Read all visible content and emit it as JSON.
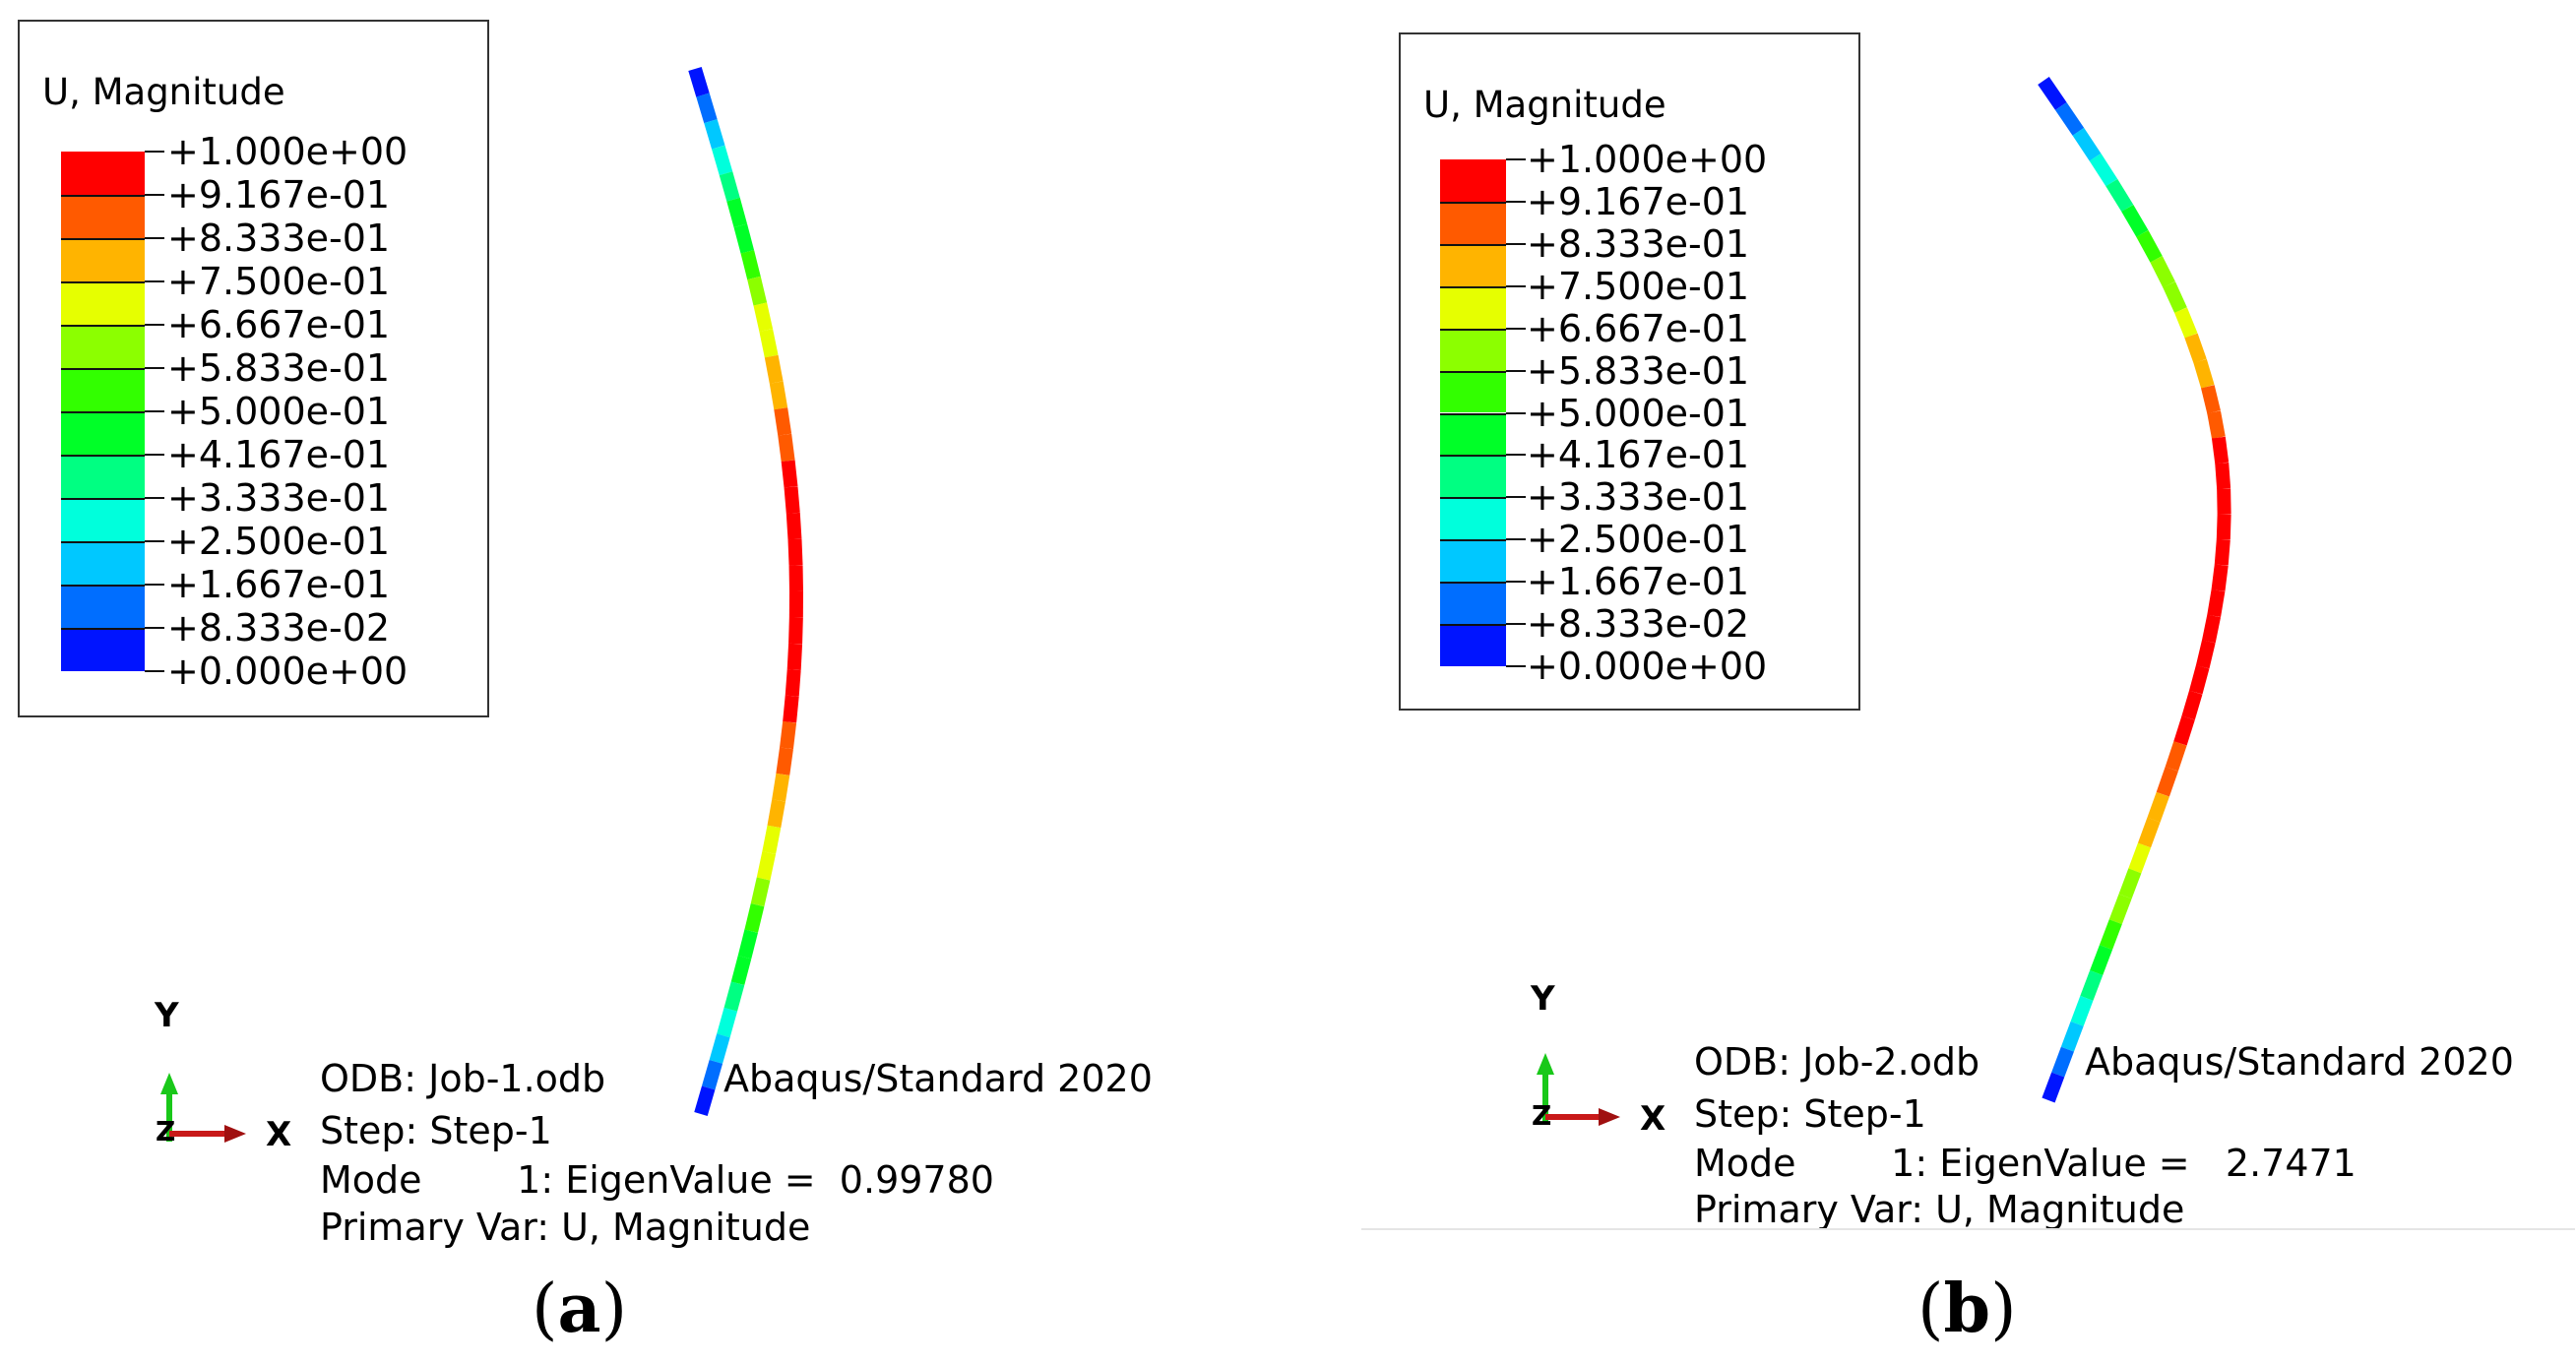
{
  "legend_colors": [
    "#ff0000",
    "#ff5a00",
    "#ffb400",
    "#e6ff00",
    "#8cff00",
    "#32ff00",
    "#00ff28",
    "#00ff82",
    "#00ffdc",
    "#00c8ff",
    "#006eff",
    "#0014ff"
  ],
  "panels": [
    {
      "id": "a",
      "legend": {
        "title": "U, Magnitude",
        "ticks": [
          "+1.000e+00",
          "+9.167e-01",
          "+8.333e-01",
          "+7.500e-01",
          "+6.667e-01",
          "+5.833e-01",
          "+5.000e-01",
          "+4.167e-01",
          "+3.333e-01",
          "+2.500e-01",
          "+1.667e-01",
          "+8.333e-02",
          "+0.000e+00"
        ]
      },
      "triad": {
        "y": "Y",
        "x": "X",
        "z": "Z"
      },
      "info": {
        "odb": "ODB: Job-1.odb",
        "solver": "Abaqus/Standard 2020",
        "step": "Step: Step-1",
        "mode": "Mode        1: EigenValue =  0.99780",
        "primary_var": "Primary Var: U, Magnitude"
      },
      "caption": {
        "open": "(",
        "letter": "a",
        "close": ")"
      }
    },
    {
      "id": "b",
      "legend": {
        "title": "U, Magnitude",
        "ticks": [
          "+1.000e+00",
          "+9.167e-01",
          "+8.333e-01",
          "+7.500e-01",
          "+6.667e-01",
          "+5.833e-01",
          "+5.000e-01",
          "+4.167e-01",
          "+3.333e-01",
          "+2.500e-01",
          "+1.667e-01",
          "+8.333e-02",
          "+0.000e+00"
        ]
      },
      "triad": {
        "y": "Y",
        "x": "X",
        "z": "Z"
      },
      "info": {
        "odb": "ODB: Job-2.odb",
        "solver": "Abaqus/Standard 2020",
        "step": "Step: Step-1",
        "mode": "Mode        1: EigenValue =   2.7471",
        "primary_var": "Primary Var: U, Magnitude"
      },
      "caption": {
        "open": "(",
        "letter": "b",
        "close": ")"
      }
    }
  ]
}
